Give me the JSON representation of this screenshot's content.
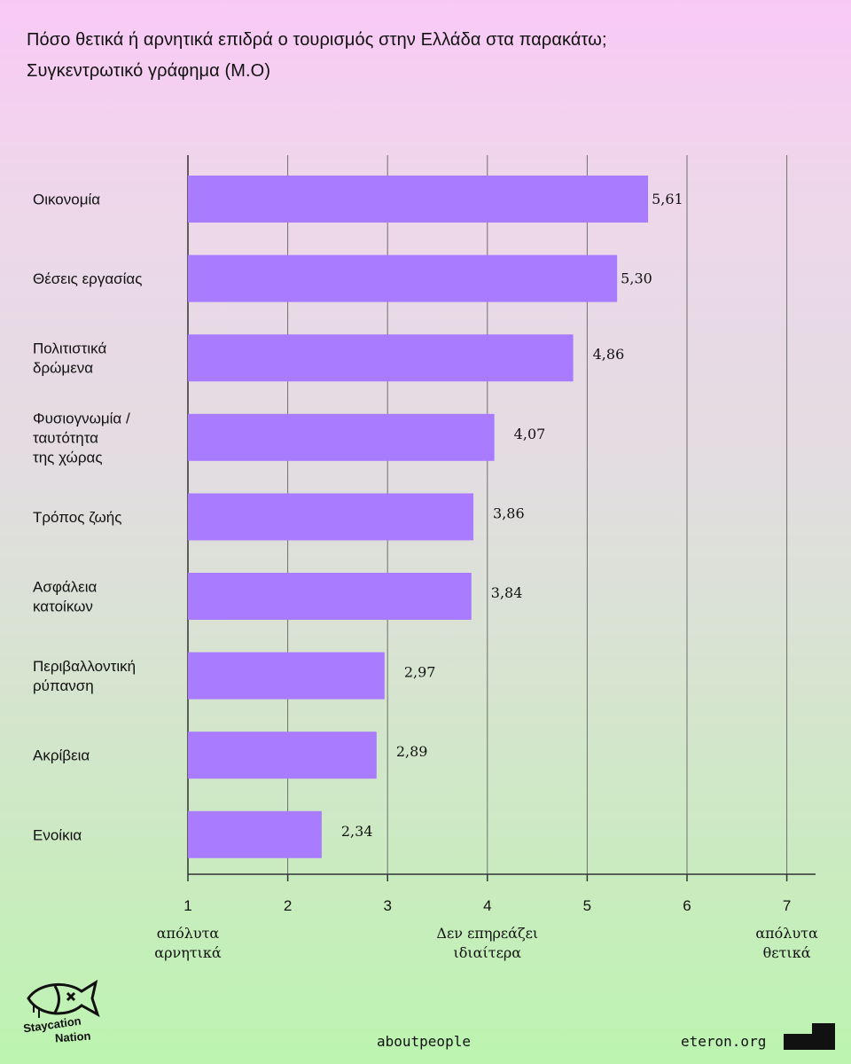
{
  "title": {
    "line1": "Πόσο θετικά ή αρνητικά επιδρά ο τουρισμός στην Ελλάδα στα παρακάτω;",
    "line2": "Συγκεντρωτικό γράφημα (Μ.Ο)"
  },
  "chart_data": {
    "type": "bar",
    "orientation": "horizontal",
    "categories": [
      [
        "Οικονομία"
      ],
      [
        "Θέσεις εργασίας"
      ],
      [
        "Πολιτιστικά",
        "δρώμενα"
      ],
      [
        "Φυσιογνωμία /",
        "ταυτότητα",
        "της χώρας"
      ],
      [
        "Τρόπος ζωής"
      ],
      [
        "Ασφάλεια",
        "κατοίκων"
      ],
      [
        "Περιβαλλοντική",
        "ρύπανση"
      ],
      [
        "Ακρίβεια"
      ],
      [
        "Ενοίκια"
      ]
    ],
    "values": [
      5.61,
      5.3,
      4.86,
      4.07,
      3.86,
      3.84,
      2.97,
      2.89,
      2.34
    ],
    "value_labels": [
      "5,61",
      "5,30",
      "4,86",
      "4,07",
      "3,86",
      "3,84",
      "2,97",
      "2,89",
      "2,34"
    ],
    "xlim": [
      1,
      7.3
    ],
    "xticks": [
      "1",
      "2",
      "3",
      "4",
      "5",
      "6",
      "7"
    ],
    "tick_annotations": [
      {
        "at": 1,
        "lines": [
          "απόλυτα",
          "αρνητικά"
        ]
      },
      {
        "at": 4,
        "lines": [
          "Δεν επηρεάζει",
          "ιδιαίτερα"
        ]
      },
      {
        "at": 7,
        "lines": [
          "απόλυτα",
          "θετικά"
        ]
      }
    ],
    "grid": "vertical",
    "bar_color": "#a97bff"
  },
  "footer": {
    "brand_left": "aboutpeople",
    "brand_right": "eteron.org",
    "logo_word1": "Staycation",
    "logo_word2": "Nation"
  }
}
